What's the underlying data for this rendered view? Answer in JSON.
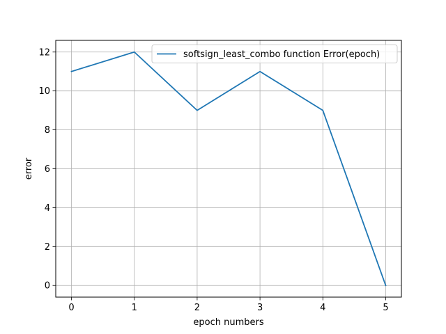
{
  "chart_data": {
    "type": "line",
    "xlabel": "epoch numbers",
    "ylabel": "error",
    "xlim": [
      -0.25,
      5.25
    ],
    "ylim": [
      -0.6,
      12.6
    ],
    "xticks": [
      0,
      1,
      2,
      3,
      4,
      5
    ],
    "yticks": [
      0,
      2,
      4,
      6,
      8,
      10,
      12
    ],
    "grid": true,
    "legend_position": "top-right",
    "series": [
      {
        "name": "softsign_least_combo function Error(epoch)",
        "color": "#1f77b4",
        "x": [
          0,
          1,
          2,
          3,
          4,
          5
        ],
        "y": [
          11,
          12,
          9,
          11,
          9,
          0
        ]
      }
    ]
  }
}
